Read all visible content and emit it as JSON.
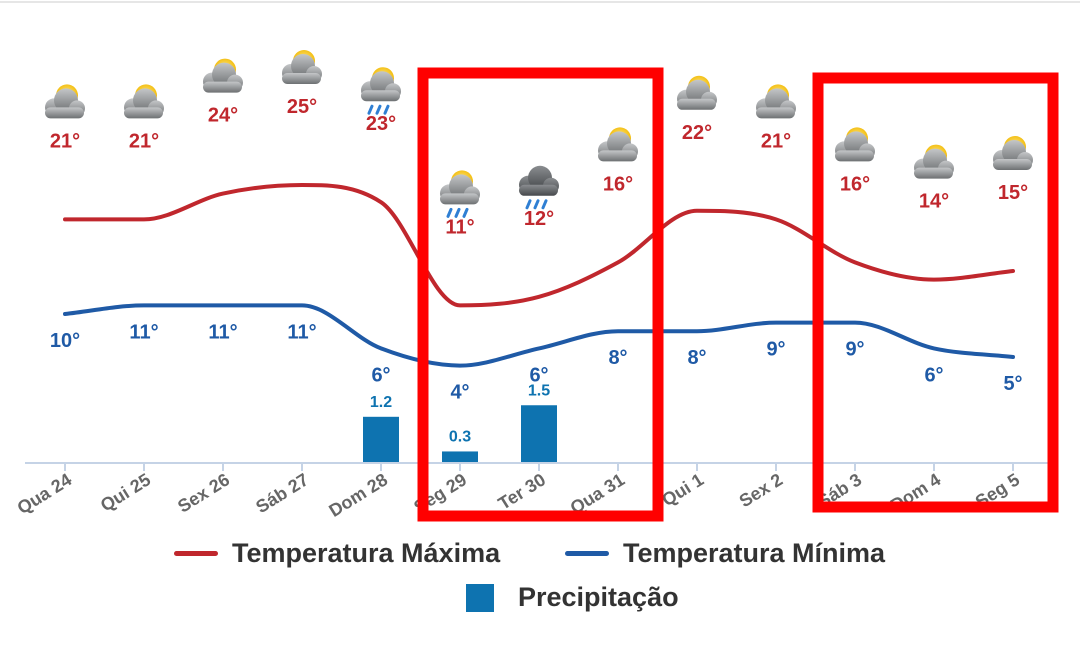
{
  "chart_data": {
    "type": "line",
    "categories": [
      "Qua 24",
      "Qui 25",
      "Sex 26",
      "Sáb 27",
      "Dom 28",
      "Seg 29",
      "Ter 30",
      "Qua 31",
      "Qui 1",
      "Sex 2",
      "Sáb 3",
      "Dom 4",
      "Seg 5"
    ],
    "series": [
      {
        "name": "Temperatura Máxima",
        "type": "line",
        "color": "#c0272d",
        "values": [
          21,
          21,
          24,
          25,
          23,
          11,
          12,
          16,
          22,
          21,
          16,
          14,
          15
        ],
        "labels": [
          "21°",
          "21°",
          "24°",
          "25°",
          "23°",
          "11°",
          "12°",
          "16°",
          "22°",
          "21°",
          "16°",
          "14°",
          "15°"
        ]
      },
      {
        "name": "Temperatura Mínima",
        "type": "line",
        "color": "#1f5aa6",
        "values": [
          10,
          11,
          11,
          11,
          6,
          4,
          6,
          8,
          8,
          9,
          9,
          6,
          5
        ],
        "labels": [
          "10°",
          "11°",
          "11°",
          "11°",
          "6°",
          "4°",
          "6°",
          "8°",
          "8°",
          "9°",
          "9°",
          "6°",
          "5°"
        ]
      },
      {
        "name": "Precipitação",
        "type": "bar",
        "color": "#0e73b0",
        "values": [
          null,
          null,
          null,
          null,
          1.2,
          0.3,
          1.5,
          null,
          null,
          null,
          null,
          null,
          null
        ],
        "labels": [
          "",
          "",
          "",
          "",
          "1.2",
          "0.3",
          "1.5",
          "",
          "",
          "",
          "",
          "",
          ""
        ]
      }
    ],
    "icons": [
      "partly-cloudy-icon",
      "partly-cloudy-icon",
      "partly-cloudy-icon",
      "partly-cloudy-icon",
      "partly-cloudy-rain-icon",
      "partly-cloudy-rain-icon",
      "rain-cloud-icon",
      "partly-cloudy-icon",
      "partly-cloudy-icon",
      "partly-cloudy-icon",
      "partly-cloudy-icon",
      "partly-cloudy-icon",
      "partly-cloudy-icon"
    ],
    "legend": {
      "position": "bottom",
      "entries": [
        "Temperatura Máxima",
        "Temperatura Mínima",
        "Precipitação"
      ]
    },
    "highlights": [
      {
        "from": "Seg 29",
        "to": "Qua 31",
        "color": "#ff0000"
      },
      {
        "from": "Sáb 3",
        "to": "Seg 5",
        "color": "#ff0000"
      }
    ],
    "grid": false
  }
}
